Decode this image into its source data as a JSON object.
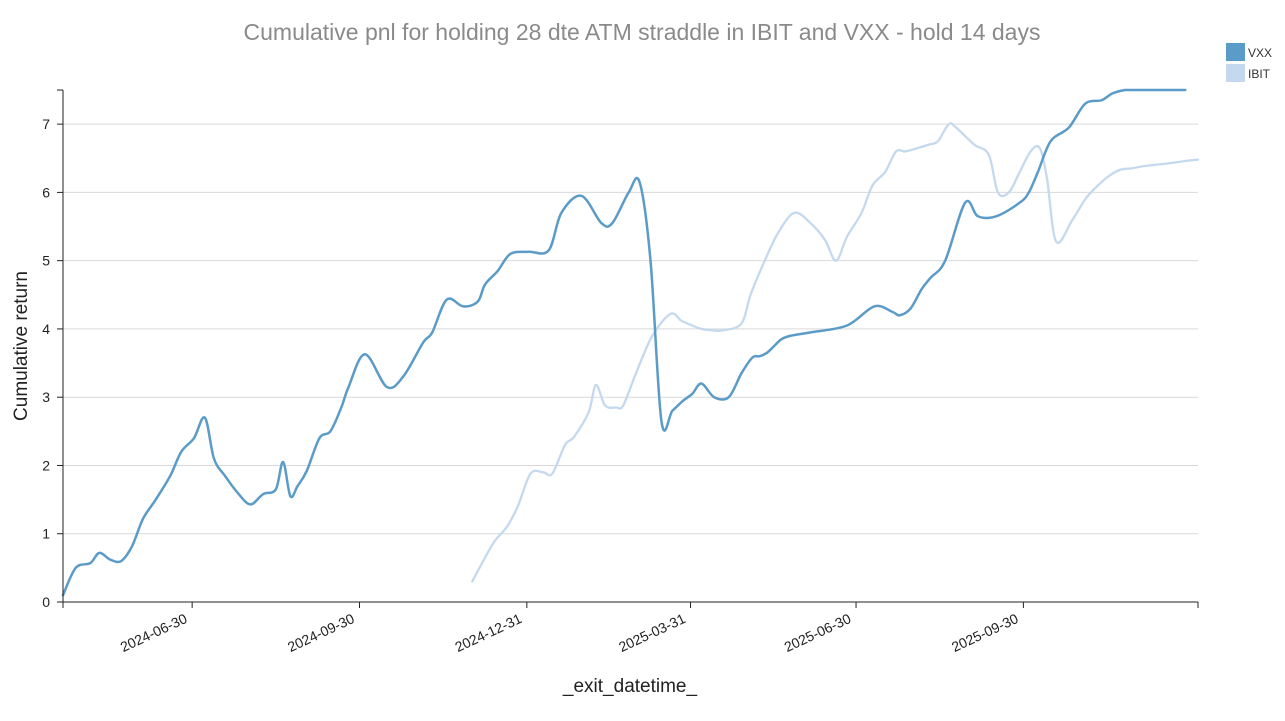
{
  "chart_data": {
    "type": "line",
    "title": "Cumulative pnl for holding 28 dte ATM straddle in IBIT and VXX - hold 14 days",
    "xlabel": "_exit_datetime_",
    "ylabel": "Cumulative return",
    "xlim": [
      "2024-04-20",
      "2026-01-04"
    ],
    "ylim": [
      0,
      7.5
    ],
    "y_ticks": [
      0,
      1,
      2,
      3,
      4,
      5,
      6,
      7
    ],
    "x_ticks": [
      "2024-06-30",
      "2024-09-30",
      "2024-12-31",
      "2025-03-31",
      "2025-06-30",
      "2025-09-30"
    ],
    "grid": "horizontal",
    "legend_position": "top-right",
    "series": [
      {
        "name": "VXX",
        "color": "#5b9bc8",
        "x": [
          "2024-04-20",
          "2024-04-27",
          "2024-05-05",
          "2024-05-10",
          "2024-05-16",
          "2024-05-22",
          "2024-05-28",
          "2024-06-03",
          "2024-06-10",
          "2024-06-18",
          "2024-06-24",
          "2024-07-01",
          "2024-07-07",
          "2024-07-12",
          "2024-07-18",
          "2024-07-25",
          "2024-08-01",
          "2024-08-08",
          "2024-08-15",
          "2024-08-19",
          "2024-08-23",
          "2024-08-27",
          "2024-09-01",
          "2024-09-08",
          "2024-09-14",
          "2024-09-20",
          "2024-09-24",
          "2024-10-03",
          "2024-10-15",
          "2024-10-24",
          "2024-11-04",
          "2024-11-09",
          "2024-11-17",
          "2024-11-26",
          "2024-12-04",
          "2024-12-08",
          "2024-12-15",
          "2024-12-22",
          "2025-01-01",
          "2025-01-12",
          "2025-01-19",
          "2025-01-30",
          "2025-02-10",
          "2025-02-16",
          "2025-02-25",
          "2025-03-03",
          "2025-03-09",
          "2025-03-15",
          "2025-03-21",
          "2025-03-27",
          "2025-04-01",
          "2025-04-06",
          "2025-04-13",
          "2025-04-21",
          "2025-04-28",
          "2025-05-04",
          "2025-05-08",
          "2025-05-12",
          "2025-05-16",
          "2025-05-20",
          "2025-05-25",
          "2025-06-05",
          "2025-06-25",
          "2025-07-10",
          "2025-07-20",
          "2025-07-24",
          "2025-07-30",
          "2025-08-05",
          "2025-08-10",
          "2025-08-18",
          "2025-08-29",
          "2025-09-05",
          "2025-09-15",
          "2025-09-28",
          "2025-10-03",
          "2025-10-08",
          "2025-10-15",
          "2025-10-25",
          "2025-11-03",
          "2025-11-12",
          "2025-11-18",
          "2025-11-25",
          "2025-12-01",
          "2025-12-09",
          "2025-12-17",
          "2025-12-23",
          "2025-12-28"
        ],
        "y": [
          0.1,
          0.5,
          0.57,
          0.72,
          0.62,
          0.6,
          0.82,
          1.22,
          1.5,
          1.85,
          2.2,
          2.4,
          2.7,
          2.1,
          1.85,
          1.6,
          1.43,
          1.58,
          1.65,
          2.05,
          1.55,
          1.7,
          1.92,
          2.4,
          2.5,
          2.85,
          3.15,
          3.63,
          3.15,
          3.3,
          3.8,
          3.95,
          4.43,
          4.33,
          4.4,
          4.65,
          4.85,
          5.1,
          5.13,
          5.15,
          5.7,
          5.95,
          5.55,
          5.55,
          6.0,
          6.15,
          5.0,
          2.65,
          2.8,
          2.95,
          3.05,
          3.2,
          3.0,
          3.0,
          3.35,
          3.58,
          3.6,
          3.65,
          3.75,
          3.85,
          3.9,
          3.95,
          4.05,
          4.33,
          4.25,
          4.2,
          4.3,
          4.58,
          4.75,
          5.0,
          5.85,
          5.65,
          5.65,
          5.85,
          6.0,
          6.3,
          6.75,
          6.95,
          7.3,
          7.35,
          7.45,
          7.55,
          7.55,
          7.55,
          7.55,
          7.55,
          7.55
        ]
      },
      {
        "name": "IBIT",
        "color": "#c5d9ee",
        "x": [
          "2024-12-01",
          "2024-12-06",
          "2024-12-13",
          "2024-12-20",
          "2024-12-26",
          "2025-01-02",
          "2025-01-09",
          "2025-01-14",
          "2025-01-21",
          "2025-01-26",
          "2025-02-03",
          "2025-02-07",
          "2025-02-12",
          "2025-02-18",
          "2025-02-22",
          "2025-03-01",
          "2025-03-10",
          "2025-03-20",
          "2025-03-26",
          "2025-04-01",
          "2025-04-06",
          "2025-04-12",
          "2025-04-18",
          "2025-04-28",
          "2025-05-03",
          "2025-05-10",
          "2025-05-18",
          "2025-05-27",
          "2025-06-05",
          "2025-06-13",
          "2025-06-19",
          "2025-06-25",
          "2025-07-03",
          "2025-07-09",
          "2025-07-16",
          "2025-07-22",
          "2025-07-27",
          "2025-08-03",
          "2025-08-09",
          "2025-08-14",
          "2025-08-20",
          "2025-08-24",
          "2025-09-03",
          "2025-09-11",
          "2025-09-16",
          "2025-09-22",
          "2025-09-28",
          "2025-10-04",
          "2025-10-09",
          "2025-10-13",
          "2025-10-18",
          "2025-10-27",
          "2025-11-03",
          "2025-11-08",
          "2025-11-15",
          "2025-11-22",
          "2025-11-28",
          "2025-12-04",
          "2025-12-10",
          "2025-12-17",
          "2025-12-23",
          "2025-12-28",
          "2026-01-04"
        ],
        "y": [
          0.3,
          0.55,
          0.88,
          1.1,
          1.4,
          1.88,
          1.9,
          1.88,
          2.3,
          2.42,
          2.78,
          3.18,
          2.88,
          2.85,
          2.88,
          3.35,
          3.9,
          4.22,
          4.12,
          4.05,
          4.0,
          3.98,
          3.98,
          4.08,
          4.5,
          4.95,
          5.4,
          5.7,
          5.55,
          5.3,
          5.0,
          5.35,
          5.7,
          6.1,
          6.3,
          6.6,
          6.6,
          6.65,
          6.7,
          6.75,
          7.0,
          6.95,
          6.7,
          6.55,
          6.0,
          6.0,
          6.3,
          6.6,
          6.65,
          6.2,
          5.28,
          5.6,
          5.9,
          6.05,
          6.22,
          6.33,
          6.35,
          6.38,
          6.4,
          6.42,
          6.44,
          6.46,
          6.48
        ]
      }
    ]
  }
}
